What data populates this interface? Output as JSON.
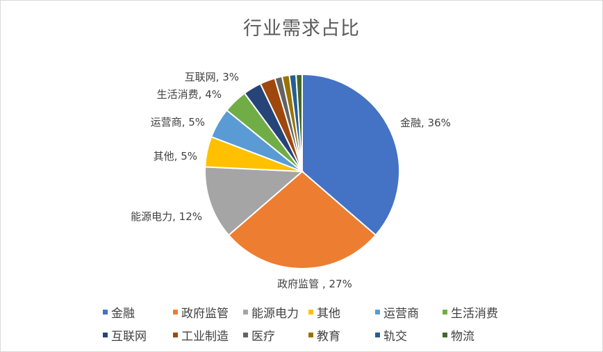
{
  "chart_data": {
    "type": "pie",
    "title": "行业需求占比",
    "legend_position": "bottom",
    "slices": [
      {
        "name": "金融",
        "value": 36,
        "label": "金融, 36%",
        "color": "#4472C4"
      },
      {
        "name": "政府监管",
        "value": 27,
        "label": "政府监管 , 27%",
        "color": "#ED7D31"
      },
      {
        "name": "能源电力",
        "value": 12,
        "label": "能源电力, 12%",
        "color": "#A5A5A5"
      },
      {
        "name": "其他",
        "value": 5,
        "label": "其他, 5%",
        "color": "#FFC000"
      },
      {
        "name": "运营商",
        "value": 5,
        "label": "运营商, 5%",
        "color": "#5B9BD5"
      },
      {
        "name": "生活消费",
        "value": 4,
        "label": "生活消费, 4%",
        "color": "#70AD47"
      },
      {
        "name": "互联网",
        "value": 3,
        "label": "互联网, 3%",
        "color": "#264478"
      },
      {
        "name": "工业制造",
        "value": 2.5,
        "label": "",
        "color": "#9E480E"
      },
      {
        "name": "医疗",
        "value": 1.2,
        "label": "",
        "color": "#636363"
      },
      {
        "name": "教育",
        "value": 1.2,
        "label": "",
        "color": "#997300"
      },
      {
        "name": "轨交",
        "value": 1.1,
        "label": "",
        "color": "#255E91"
      },
      {
        "name": "物流",
        "value": 1.0,
        "label": "",
        "color": "#43682B"
      }
    ]
  }
}
